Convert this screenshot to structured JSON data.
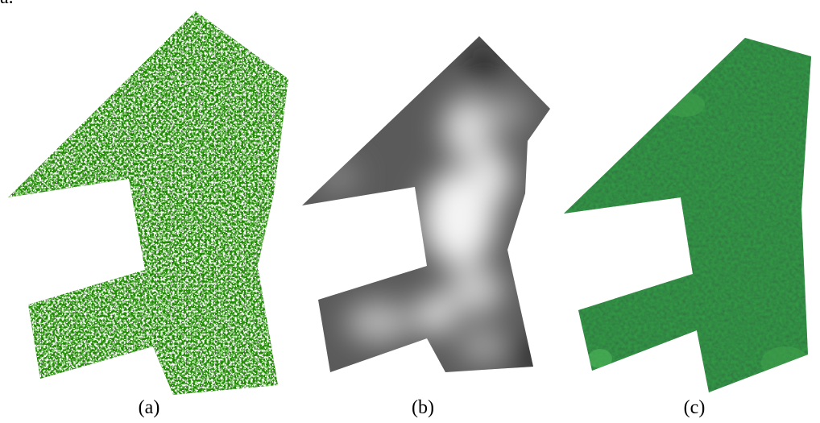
{
  "corner_text": "a.",
  "panels": [
    {
      "label": "(a)"
    },
    {
      "label": "(b)"
    },
    {
      "label": "(c)"
    }
  ]
}
